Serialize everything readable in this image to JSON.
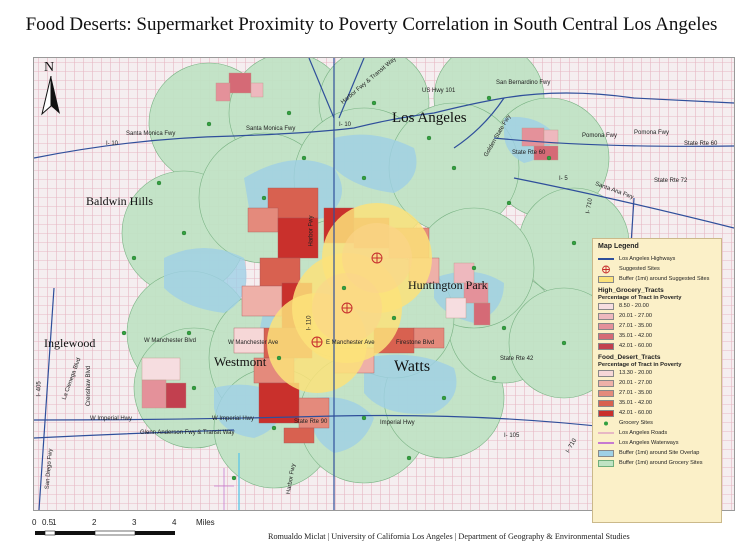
{
  "title": "Food Deserts: Supermarket Proximity to Poverty Correlation in South Central Los Angeles",
  "north_label": "N",
  "places": {
    "los_angeles": "Los Angeles",
    "baldwin_hills": "Baldwin Hills",
    "huntington_park": "Huntington Park",
    "inglewood": "Inglewood",
    "westmont": "Westmont",
    "watts": "Watts"
  },
  "roads": {
    "santa_monica_fwy_1": "Santa Monica Fwy",
    "santa_monica_fwy_2": "Santa Monica Fwy",
    "i10_a": "I- 10",
    "i10_b": "I- 10",
    "harbor_transit": "Harbor Fwy & Transit Way",
    "us101": "US Hwy 101",
    "san_bernardino": "San Bernardino Fwy",
    "golden_state": "Golden State Fwy",
    "pomona_1": "Pomona Fwy",
    "pomona_2": "Pomona Fwy",
    "state_rte_60_a": "State Rte 60",
    "state_rte_60_b": "State Rte 60",
    "i5": "I- 5",
    "state_rte_72": "State Rte 72",
    "santa_ana": "Santa Ana Fwy",
    "i710": "I- 710",
    "harbor_fwy": "Harbor Fwy",
    "i110": "I- 110",
    "w_manchester_blvd": "W Manchester Blvd",
    "w_manchester_ave": "W Manchester Ave",
    "e_manchester_ave": "E Manchester Ave",
    "firestone": "Firestone Blvd",
    "state_rte_42": "State Rte 42",
    "w_imperial_1": "W Imperial Hwy",
    "w_imperial_2": "W Imperial Hwy",
    "imperial_hwy": "Imperial Hwy",
    "glenn_anderson": "Glenn Anderson Fwy & Transit Way",
    "state_rte_90": "State Rte 90",
    "harbor_fwy_s": "Harbor Fwy",
    "i105": "I- 105",
    "i710_s": "I- 710",
    "i405": "I- 405",
    "san_diego": "San Diego Fwy",
    "la_cienega": "La Cienega Blvd",
    "crenshaw": "Crenshaw Blvd"
  },
  "legend": {
    "title": "Map Legend",
    "highways": "Los Angeles Highways",
    "suggested": "Suggested Sites",
    "buffer_suggested": "Buffer (1mi) around Suggested Sites",
    "high_grocery_title": "High_Grocery_Tracts",
    "pct_label_1": "Percentage of Tract in Poverty",
    "high_grocery_classes": [
      {
        "label": "8.50 - 20.00",
        "color": "#f6dde0"
      },
      {
        "label": "20.01 - 27.00",
        "color": "#eeb8be"
      },
      {
        "label": "27.01 - 35.00",
        "color": "#e4919a"
      },
      {
        "label": "35.01 - 42.00",
        "color": "#d56a76"
      },
      {
        "label": "42.01 - 60.00",
        "color": "#c2404f"
      }
    ],
    "food_desert_title": "Food_Desert_Tracts",
    "pct_label_2": "Percentage of Tract in Poverty",
    "food_desert_classes": [
      {
        "label": "13.30 - 20.00",
        "color": "#f6d7d7"
      },
      {
        "label": "20.01 - 27.00",
        "color": "#eeb0a8"
      },
      {
        "label": "27.01 - 35.00",
        "color": "#e48a7c"
      },
      {
        "label": "35.01 - 42.00",
        "color": "#d86150"
      },
      {
        "label": "42.01 - 60.00",
        "color": "#c9302c"
      }
    ],
    "grocery_sites": "Grocery Sites",
    "roads": "Los Angeles Roads",
    "waterways": "Los Angeles Waterways",
    "buffer_overlap": "Buffer (1mi) around Site Overlap",
    "buffer_grocery": "Buffer (1mi) around Grocery Sites"
  },
  "scale": {
    "ticks": [
      "0",
      "0.5",
      "1",
      "2",
      "3",
      "4"
    ],
    "unit": "Miles"
  },
  "credit": "Romualdo Miclat | University of California Los Angeles | Department of Geography & Environmental Studies"
}
